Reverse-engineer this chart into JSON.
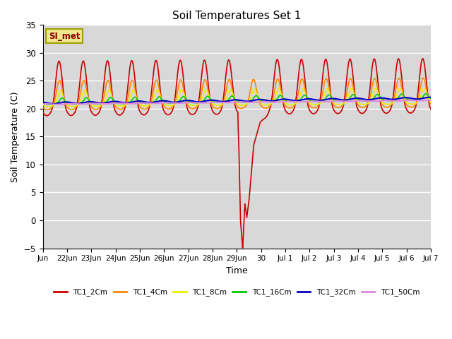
{
  "title": "Soil Temperatures Set 1",
  "xlabel": "Time",
  "ylabel": "Soil Temperature (C)",
  "ylim": [
    -5,
    35
  ],
  "yticks": [
    -5,
    0,
    5,
    10,
    15,
    20,
    25,
    30,
    35
  ],
  "bg_color": "#d8d8d8",
  "annotation_text": "SI_met",
  "annotation_color": "#8B0000",
  "annotation_bg": "#f0e68c",
  "annotation_border": "#a0a000",
  "series": [
    {
      "name": "TC1_2Cm",
      "color": "#cc0000",
      "lw": 1.2
    },
    {
      "name": "TC1_4Cm",
      "color": "#ff8800",
      "lw": 1.2
    },
    {
      "name": "TC1_8Cm",
      "color": "#eeee00",
      "lw": 1.2
    },
    {
      "name": "TC1_16Cm",
      "color": "#00cc00",
      "lw": 1.2
    },
    {
      "name": "TC1_32Cm",
      "color": "#0000cc",
      "lw": 1.5
    },
    {
      "name": "TC1_50Cm",
      "color": "#dd88dd",
      "lw": 1.5
    }
  ],
  "xtick_labels": [
    "Jun",
    "22Jun",
    "23Jun",
    "24Jun",
    "25Jun",
    "26Jun",
    "27Jun",
    "28Jun",
    "29Jun",
    "30",
    "Jul 1",
    "Jul 2",
    "Jul 3",
    "Jul 4",
    "Jul 5",
    "Jul 6",
    "Jul 7"
  ],
  "num_days": 16
}
